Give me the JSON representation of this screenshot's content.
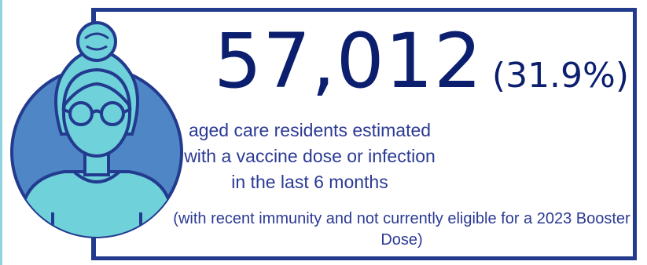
{
  "stat": {
    "count": "57,012",
    "percent": "(31.9%)"
  },
  "description": "aged care residents estimated with a vaccine dose or infection in the last 6 months",
  "note": "(with recent immunity and not currently eligible for a 2023 Booster Dose)",
  "colors": {
    "border": "#233b8f",
    "headline": "#0c1f6e",
    "text": "#2b3a94",
    "avatar_circle": "#4f86c6",
    "avatar_fill": "#6fd1d9",
    "left_accent": "#8fd3dc"
  },
  "avatar": {
    "icon": "elderly-woman-with-glasses-icon"
  }
}
